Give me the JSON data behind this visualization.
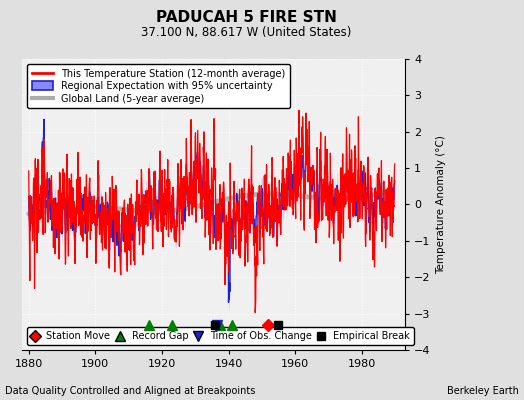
{
  "title": "PADUCAH 5 FIRE STN",
  "subtitle": "37.100 N, 88.617 W (United States)",
  "xlabel_bottom": "Data Quality Controlled and Aligned at Breakpoints",
  "xlabel_right": "Berkeley Earth",
  "ylabel": "Temperature Anomaly (°C)",
  "legend_lines": [
    {
      "label": "This Temperature Station (12-month average)",
      "color": "#ff0000",
      "lw": 1.5
    },
    {
      "label": "Regional Expectation with 95% uncertainty",
      "color": "#4444dd",
      "lw": 1.5
    },
    {
      "label": "Global Land (5-year average)",
      "color": "#aaaaaa",
      "lw": 3
    }
  ],
  "xlim": [
    1878,
    1993
  ],
  "ylim": [
    -4,
    4
  ],
  "xticks": [
    1880,
    1900,
    1920,
    1940,
    1960,
    1980
  ],
  "yticks": [
    -4,
    -3,
    -2,
    -1,
    0,
    1,
    2,
    3,
    4
  ],
  "bg_color": "#e0e0e0",
  "plot_bg_color": "#f0f0f0",
  "grid_color": "#ffffff",
  "station_moves": [
    1952.0
  ],
  "record_gaps": [
    1916.0,
    1923.0,
    1937.5,
    1941.0
  ],
  "obs_changes": [
    1936.5
  ],
  "empirical_breaks": [
    1936.0,
    1955.0
  ],
  "marker_y": -3.3,
  "seed": 42
}
